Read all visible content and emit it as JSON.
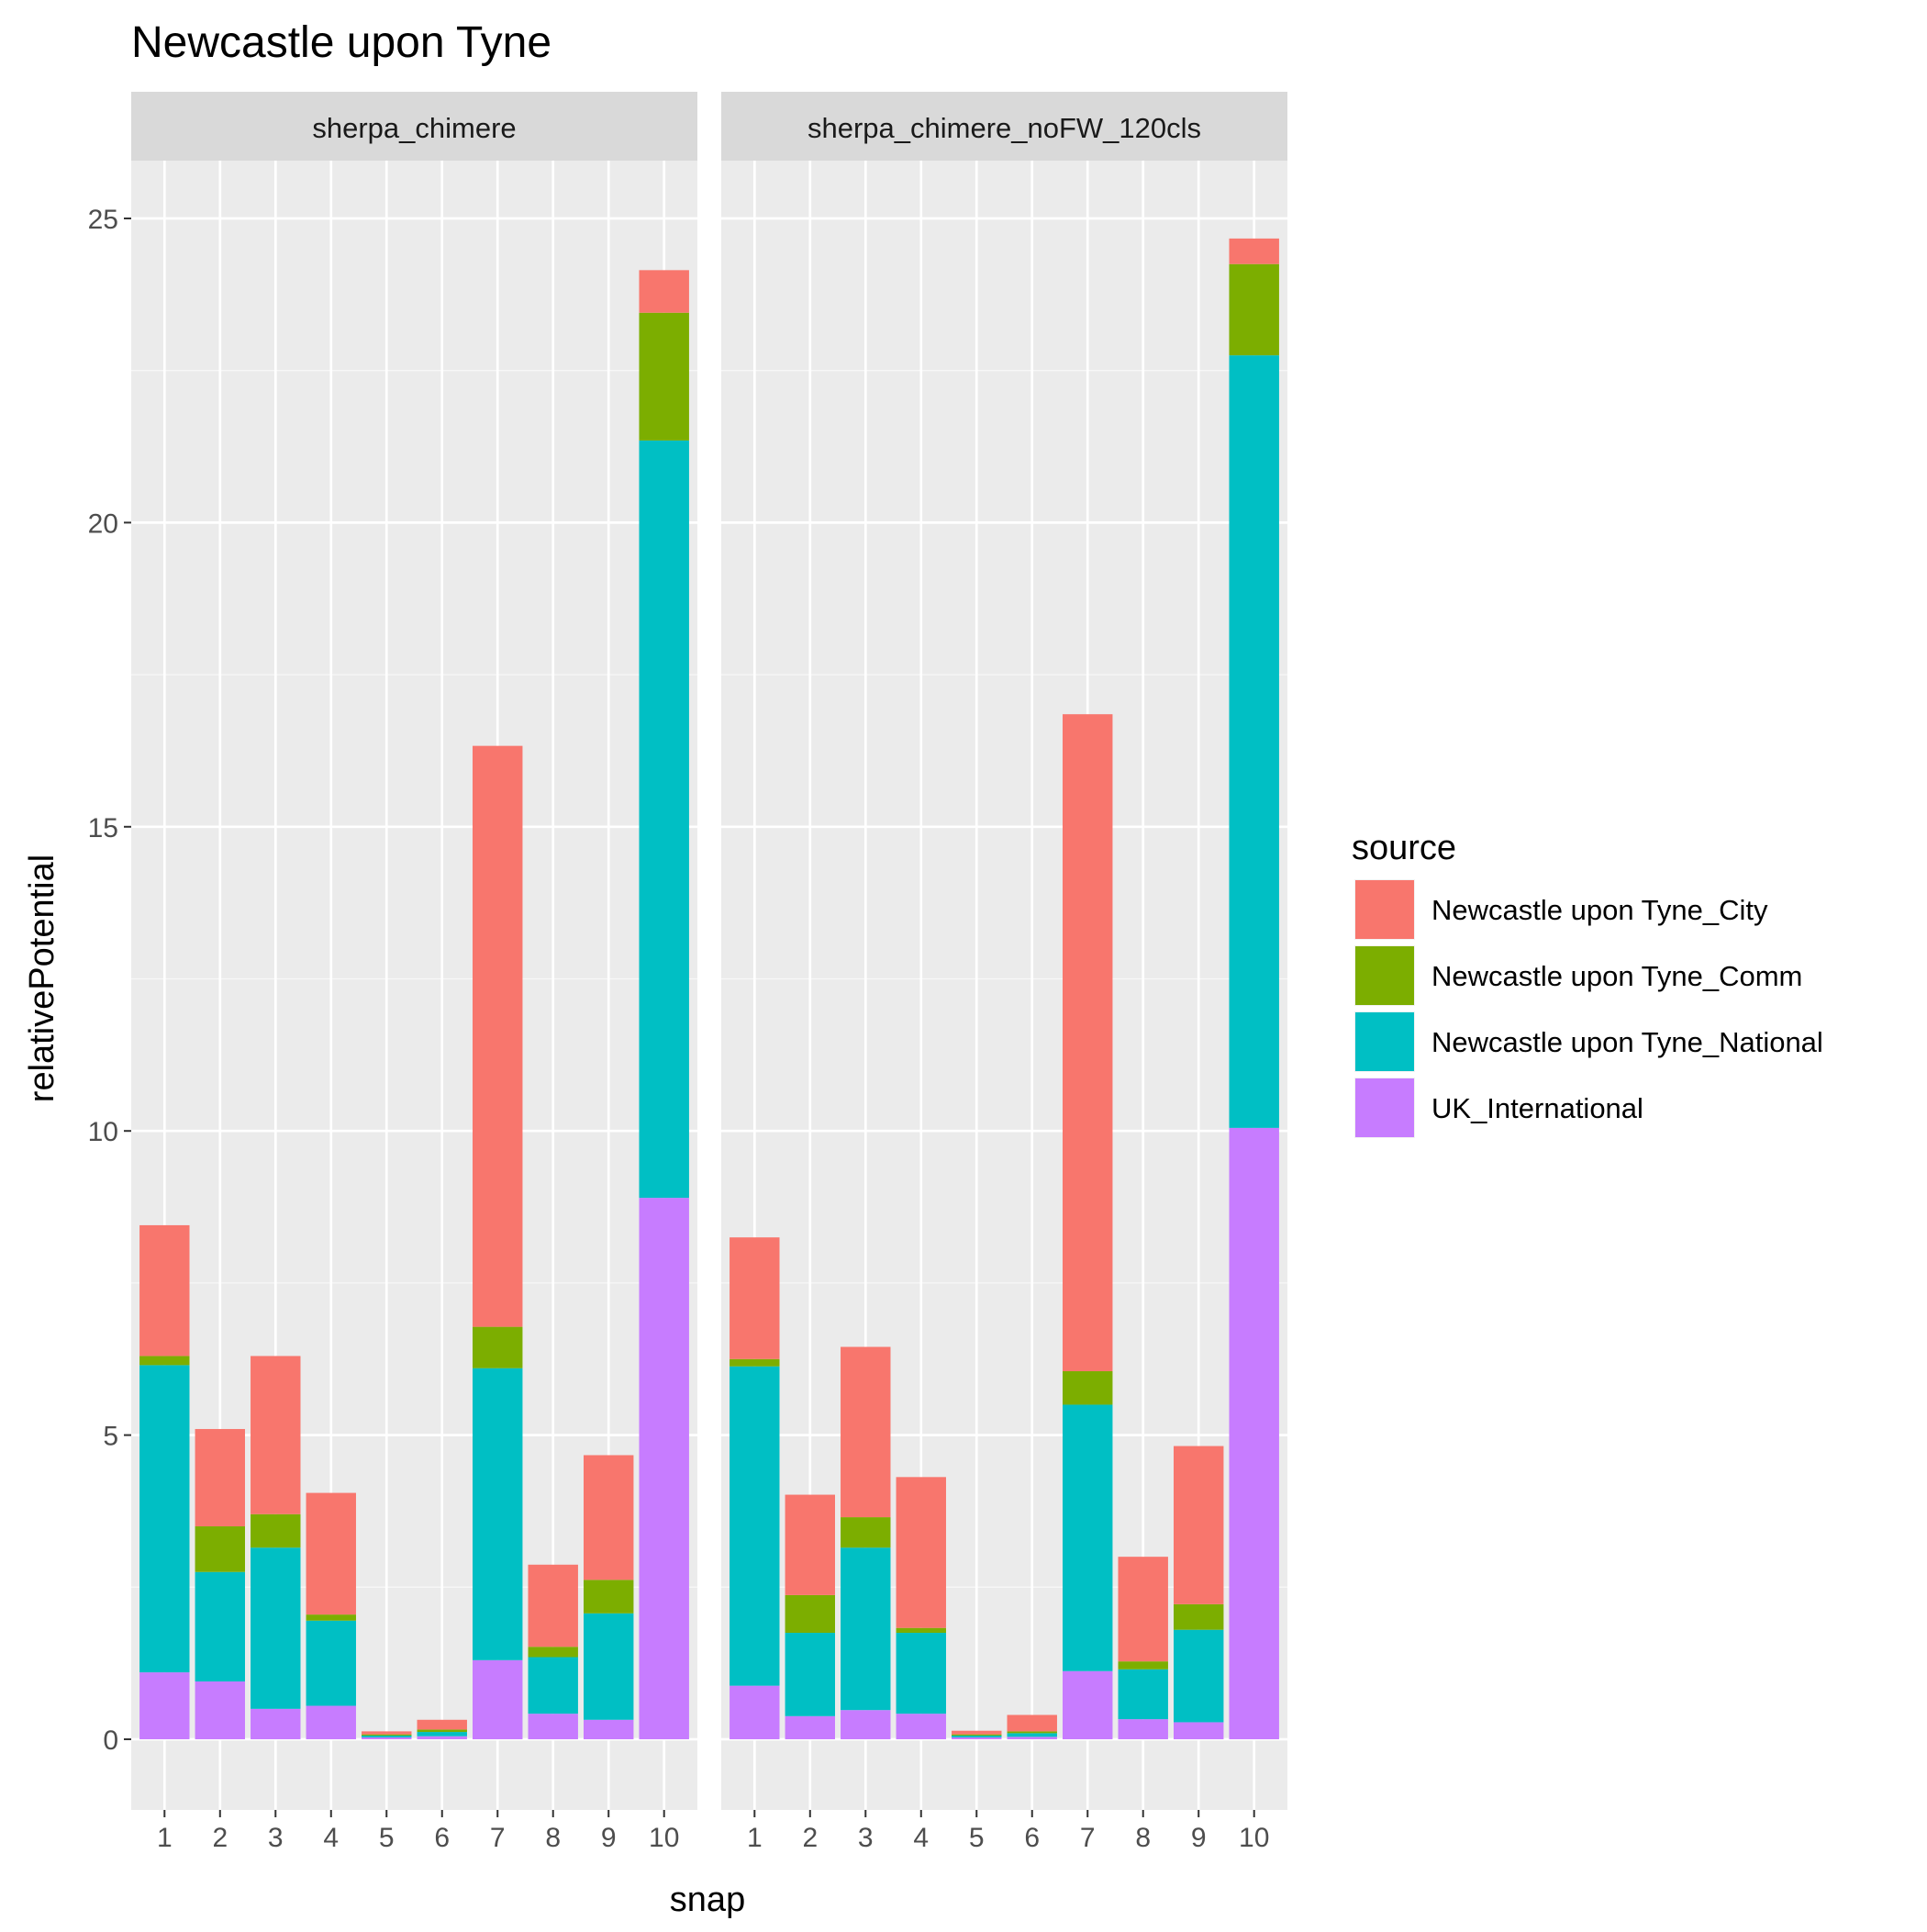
{
  "chart_data": {
    "type": "bar",
    "stacked": true,
    "faceted": true,
    "title": "Newcastle upon Tyne",
    "xlabel": "snap",
    "ylabel": "relativePotential",
    "ylim": [
      -1.1,
      27.0
    ],
    "yticks": [
      0,
      5,
      10,
      15,
      20,
      25
    ],
    "grid": true,
    "legend": {
      "title": "source",
      "position": "right"
    },
    "categories": [
      "1",
      "2",
      "3",
      "4",
      "5",
      "6",
      "7",
      "8",
      "9",
      "10"
    ],
    "series": [
      {
        "name": "Newcastle upon Tyne_City",
        "color": "#F8766D"
      },
      {
        "name": "Newcastle upon Tyne_Comm",
        "color": "#7CAE00"
      },
      {
        "name": "Newcastle upon Tyne_National",
        "color": "#00BFC4"
      },
      {
        "name": "UK_International",
        "color": "#C77CFF"
      }
    ],
    "stack_order": [
      "UK_International",
      "Newcastle upon Tyne_National",
      "Newcastle upon Tyne_Comm",
      "Newcastle upon Tyne_City"
    ],
    "facets": [
      {
        "label": "sherpa_chimere",
        "values": {
          "UK_International": [
            1.1,
            0.95,
            0.5,
            0.55,
            0.03,
            0.05,
            1.3,
            0.42,
            0.32,
            8.9
          ],
          "Newcastle upon Tyne_National": [
            5.05,
            1.8,
            2.65,
            1.4,
            0.03,
            0.07,
            4.8,
            0.93,
            1.75,
            12.45
          ],
          "Newcastle upon Tyne_Comm": [
            0.15,
            0.75,
            0.55,
            0.1,
            0.02,
            0.04,
            0.68,
            0.17,
            0.55,
            2.1
          ],
          "Newcastle upon Tyne_City": [
            2.15,
            1.6,
            2.6,
            2.0,
            0.05,
            0.16,
            9.55,
            1.35,
            2.05,
            0.7
          ]
        }
      },
      {
        "label": "sherpa_chimere_noFW_120cls",
        "values": {
          "UK_International": [
            0.88,
            0.38,
            0.48,
            0.42,
            0.03,
            0.04,
            1.12,
            0.33,
            0.28,
            10.05
          ],
          "Newcastle upon Tyne_National": [
            5.25,
            1.37,
            2.67,
            1.33,
            0.03,
            0.06,
            4.38,
            0.82,
            1.52,
            12.7
          ],
          "Newcastle upon Tyne_Comm": [
            0.12,
            0.62,
            0.5,
            0.08,
            0.02,
            0.03,
            0.55,
            0.13,
            0.42,
            1.5
          ],
          "Newcastle upon Tyne_City": [
            2.0,
            1.65,
            2.8,
            2.48,
            0.06,
            0.27,
            10.8,
            1.72,
            2.6,
            0.42
          ]
        }
      }
    ]
  }
}
